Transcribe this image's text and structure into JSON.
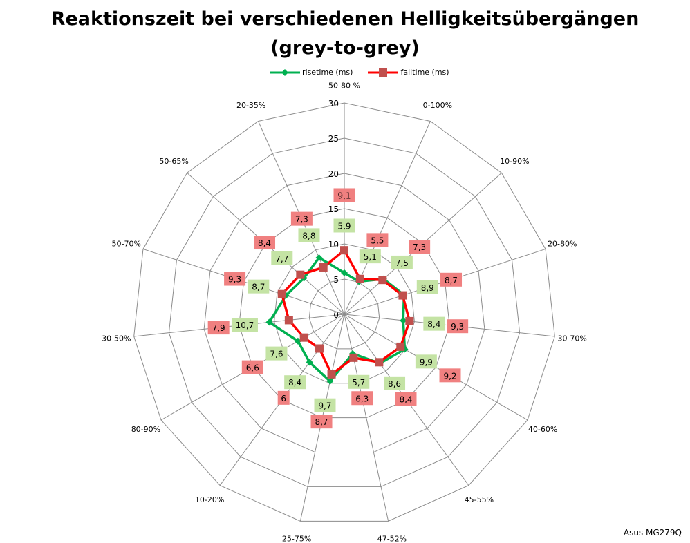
{
  "chart_data": {
    "type": "radar",
    "title_line1": "Reaktionszeit bei verschiedenen Helligkeitsübergängen",
    "title_line2": "(grey-to-grey)",
    "categories": [
      "50-80 %",
      "0-100%",
      "10-90%",
      "20-80%",
      "30-70%",
      "40-60%",
      "45-55%",
      "47-52%",
      "25-75%",
      "10-20%",
      "80-90%",
      "30-50%",
      "50-70%",
      "50-65%",
      "20-35%"
    ],
    "radial_ticks": [
      0,
      5,
      10,
      15,
      20,
      25,
      30
    ],
    "rlim": [
      0,
      30
    ],
    "legend_position": "top",
    "series": [
      {
        "name": "risetime (ms)",
        "color": "#00b050",
        "label_bg": "#c4e3a4",
        "values": [
          5.9,
          5.1,
          7.5,
          8.9,
          8.4,
          9.9,
          8.6,
          5.7,
          9.7,
          8.4,
          7.6,
          10.7,
          8.7,
          7.7,
          8.8
        ]
      },
      {
        "name": "falltime (ms)",
        "color": "#ff0000",
        "marker_color": "#c0504d",
        "label_bg": "#f08080",
        "values": [
          9.1,
          5.5,
          7.3,
          8.7,
          9.3,
          9.2,
          8.4,
          6.3,
          8.7,
          6,
          6.6,
          7.9,
          9.3,
          8.4,
          7.3
        ]
      }
    ]
  },
  "footer": "Asus MG279Q"
}
